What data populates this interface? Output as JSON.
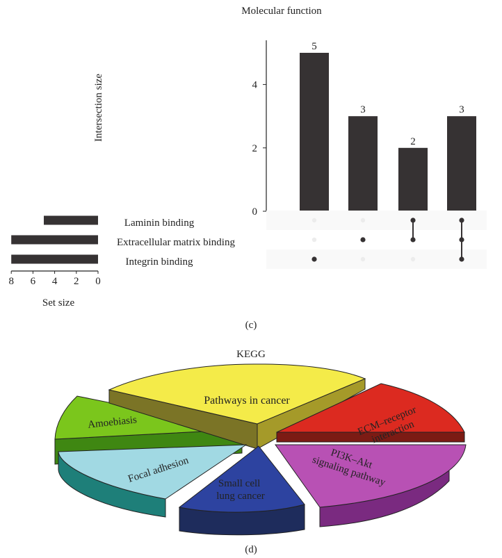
{
  "chart_data": [
    {
      "type": "bar",
      "subtype": "upset",
      "title": "Molecular function",
      "ylabel": "Intersection size",
      "ylim": [
        0,
        5.6
      ],
      "yticks": [
        0,
        2,
        4
      ],
      "intersection_values": [
        5,
        3,
        2,
        3
      ],
      "sets": [
        {
          "name": "Laminin binding",
          "size": 5
        },
        {
          "name": "Extracellular matrix binding",
          "size": 8
        },
        {
          "name": "Integrin binding",
          "size": 8
        }
      ],
      "set_axis": {
        "label": "Set size",
        "ticks": [
          8,
          6,
          4,
          2,
          0
        ],
        "max": 8
      },
      "membership": [
        [
          2
        ],
        [
          1
        ],
        [
          0,
          1
        ],
        [
          0,
          1,
          2
        ]
      ],
      "bar_color": "#363233",
      "dot_color": "#363233",
      "empty_dot_color": "#ececec",
      "panel_label": "(c)"
    },
    {
      "type": "pie",
      "style": "3d-exploded",
      "title": "KEGG",
      "slices": [
        {
          "label": "Pathways in cancer",
          "color": "#f4eb49"
        },
        {
          "label": "ECM–receptor interaction",
          "color": "#dc2a20"
        },
        {
          "label": "PI3K–Akt signaling pathway",
          "color": "#b851b4"
        },
        {
          "label": "Small cell lung cancer",
          "color": "#2d43a0"
        },
        {
          "label": "Focal adhesion",
          "color": "#a1d9e3"
        },
        {
          "label": "Amoebiasis",
          "color": "#7bc61c"
        }
      ],
      "panel_label": "(d)"
    }
  ]
}
